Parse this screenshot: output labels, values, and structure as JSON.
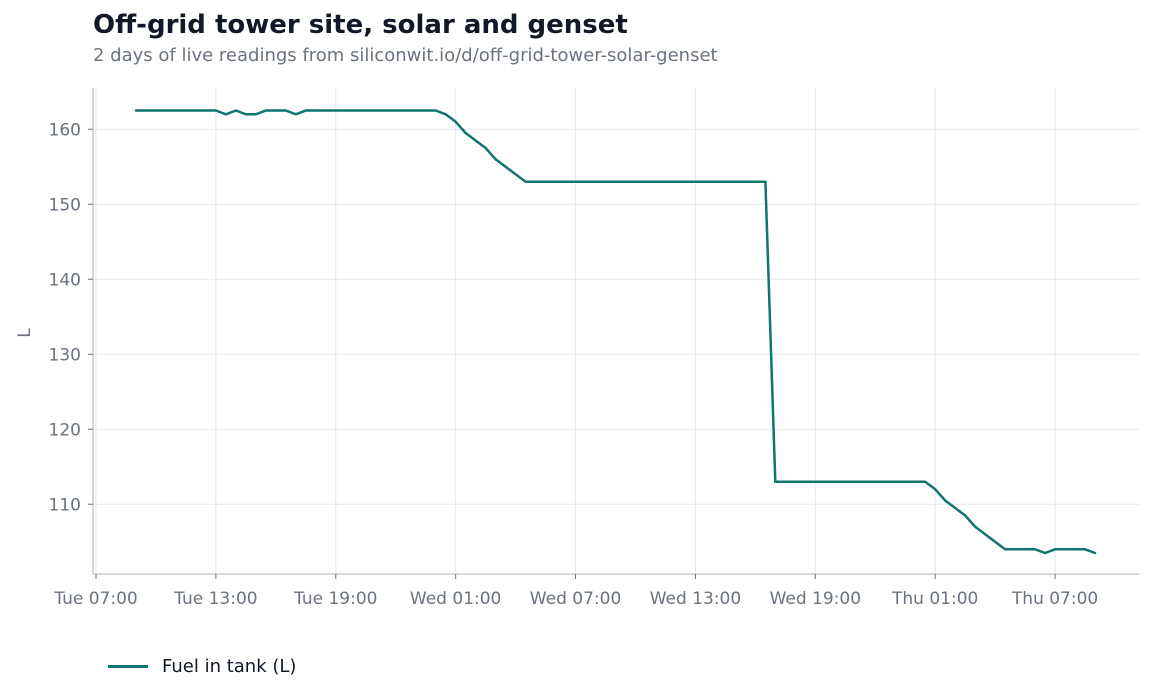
{
  "chart_data": {
    "type": "line",
    "title": "Off-grid tower site, solar and genset",
    "subtitle": "2 days of live readings from siliconwit.io/d/off-grid-tower-solar-genset",
    "xlabel": "",
    "ylabel": "L",
    "xlim": [
      6.85,
      59.2
    ],
    "ylim": [
      100.7,
      165.5
    ],
    "x_ticks": [
      {
        "label": "Tue 07:00",
        "value": 7
      },
      {
        "label": "Tue 13:00",
        "value": 13
      },
      {
        "label": "Tue 19:00",
        "value": 19
      },
      {
        "label": "Wed 01:00",
        "value": 25
      },
      {
        "label": "Wed 07:00",
        "value": 31
      },
      {
        "label": "Wed 13:00",
        "value": 37
      },
      {
        "label": "Wed 19:00",
        "value": 43
      },
      {
        "label": "Thu 01:00",
        "value": 49
      },
      {
        "label": "Thu 07:00",
        "value": 55
      }
    ],
    "y_ticks": [
      110,
      120,
      130,
      140,
      150,
      160
    ],
    "grid": true,
    "legend_position": "bottom-left",
    "series": [
      {
        "name": "Fuel in tank (L)",
        "color": "#0f766e",
        "points": [
          [
            9.0,
            162.5
          ],
          [
            10.0,
            162.5
          ],
          [
            11.0,
            162.5
          ],
          [
            12.0,
            162.5
          ],
          [
            13.0,
            162.5
          ],
          [
            13.5,
            162.0
          ],
          [
            14.0,
            162.5
          ],
          [
            14.5,
            162.0
          ],
          [
            15.0,
            162.0
          ],
          [
            15.5,
            162.5
          ],
          [
            16.0,
            162.5
          ],
          [
            16.5,
            162.5
          ],
          [
            17.0,
            162.0
          ],
          [
            17.5,
            162.5
          ],
          [
            18.0,
            162.5
          ],
          [
            19.0,
            162.5
          ],
          [
            20.0,
            162.5
          ],
          [
            21.0,
            162.5
          ],
          [
            22.0,
            162.5
          ],
          [
            23.0,
            162.5
          ],
          [
            24.0,
            162.5
          ],
          [
            24.5,
            162.0
          ],
          [
            25.0,
            161.0
          ],
          [
            25.5,
            159.5
          ],
          [
            26.0,
            158.5
          ],
          [
            26.5,
            157.5
          ],
          [
            27.0,
            156.0
          ],
          [
            27.5,
            155.0
          ],
          [
            28.0,
            154.0
          ],
          [
            28.5,
            153.0
          ],
          [
            29.0,
            153.0
          ],
          [
            30.0,
            153.0
          ],
          [
            31.0,
            153.0
          ],
          [
            32.0,
            153.0
          ],
          [
            33.0,
            153.0
          ],
          [
            34.0,
            153.0
          ],
          [
            35.0,
            153.0
          ],
          [
            36.0,
            153.0
          ],
          [
            37.0,
            153.0
          ],
          [
            38.0,
            153.0
          ],
          [
            39.0,
            153.0
          ],
          [
            40.0,
            153.0
          ],
          [
            40.5,
            153.0
          ],
          [
            41.0,
            113.0
          ],
          [
            42.0,
            113.0
          ],
          [
            43.0,
            113.0
          ],
          [
            44.0,
            113.0
          ],
          [
            45.0,
            113.0
          ],
          [
            46.0,
            113.0
          ],
          [
            47.0,
            113.0
          ],
          [
            48.0,
            113.0
          ],
          [
            48.5,
            113.0
          ],
          [
            49.0,
            112.0
          ],
          [
            49.5,
            110.5
          ],
          [
            50.0,
            109.5
          ],
          [
            50.5,
            108.5
          ],
          [
            51.0,
            107.0
          ],
          [
            51.5,
            106.0
          ],
          [
            52.0,
            105.0
          ],
          [
            52.5,
            104.0
          ],
          [
            53.0,
            104.0
          ],
          [
            53.5,
            104.0
          ],
          [
            54.0,
            104.0
          ],
          [
            54.5,
            103.5
          ],
          [
            55.0,
            104.0
          ],
          [
            55.5,
            104.0
          ],
          [
            56.0,
            104.0
          ],
          [
            56.5,
            104.0
          ],
          [
            57.0,
            103.5
          ]
        ]
      }
    ]
  }
}
